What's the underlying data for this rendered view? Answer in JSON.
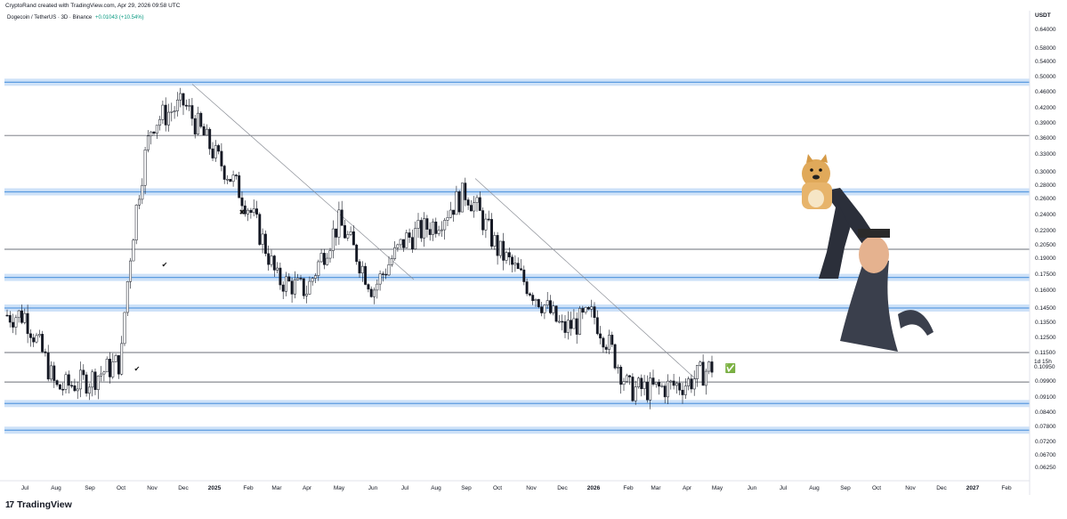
{
  "header": {
    "credit": "CryptoRand created with TradingView.com, Apr 29, 2026 09:58 UTC",
    "symbol": "Dogecoin / TetherUS · 3D · Binance",
    "change": "+0.01043 (+10.54%)"
  },
  "footer": {
    "brand": "TradingView"
  },
  "colors": {
    "up": "#ffffff",
    "down": "#131722",
    "zone": "#bcd7f5",
    "zoneLine": "#5b9be0",
    "check": "#5cb85c"
  },
  "chart_data": {
    "type": "candlestick",
    "currency": "USDT",
    "price_label": "0.10950",
    "countdown": "1d 15h",
    "y_ticks": [
      "0.64000",
      "0.58000",
      "0.54000",
      "0.50000",
      "0.46000",
      "0.42000",
      "0.39000",
      "0.36000",
      "0.33000",
      "0.30000",
      "0.28000",
      "0.26000",
      "0.24000",
      "0.22000",
      "0.20500",
      "0.19000",
      "0.17500",
      "0.16000",
      "0.14500",
      "0.13500",
      "0.12500",
      "0.11500",
      "0.09900",
      "0.09100",
      "0.08400",
      "0.07800",
      "0.07200",
      "0.06700",
      "0.06250"
    ],
    "x_ticks": [
      "Jul",
      "Aug",
      "Sep",
      "Oct",
      "Nov",
      "Dec",
      "2025",
      "Feb",
      "Mar",
      "Apr",
      "May",
      "Jun",
      "Jul",
      "Aug",
      "Sep",
      "Oct",
      "Nov",
      "Dec",
      "2026",
      "Feb",
      "Mar",
      "Apr",
      "May",
      "Jun",
      "Jul",
      "Aug",
      "Sep",
      "Oct",
      "Nov",
      "Dec",
      "2027",
      "Feb"
    ],
    "support_resistance_zones": [
      0.485,
      0.27,
      0.172,
      0.145,
      0.088,
      0.0765
    ],
    "horizontal_levels": [
      0.365,
      0.2,
      0.115,
      0.0985
    ],
    "trendlines": [
      {
        "from": [
          "Dec 2024",
          0.48
        ],
        "to": [
          "Jul 2025",
          0.17
        ]
      },
      {
        "from": [
          "Sep 2025",
          0.29
        ],
        "to": [
          "Apr 2026",
          0.1
        ]
      }
    ],
    "markers": [
      {
        "label": "✔",
        "date": "Nov 2024"
      },
      {
        "label": "✔",
        "date": "Oct 2024"
      },
      {
        "label": "✖",
        "date": "Jan 2025"
      },
      {
        "label": "✅",
        "date": "May 2026"
      }
    ],
    "price_path": [
      [
        "Jul 2024",
        0.14
      ],
      [
        "Aug 2024",
        0.095
      ],
      [
        "Sep 2024",
        0.1
      ],
      [
        "Oct 2024",
        0.11
      ],
      [
        "Nov 2024",
        0.39
      ],
      [
        "Dec 2024",
        0.43
      ],
      [
        "Jan 2025",
        0.33
      ],
      [
        "Feb 2025",
        0.25
      ],
      [
        "Mar 2025",
        0.17
      ],
      [
        "Apr 2025",
        0.16
      ],
      [
        "May 2025",
        0.23
      ],
      [
        "Jun 2025",
        0.16
      ],
      [
        "Jul 2025",
        0.21
      ],
      [
        "Aug 2025",
        0.23
      ],
      [
        "Sep 2025",
        0.27
      ],
      [
        "Oct 2025",
        0.2
      ],
      [
        "Nov 2025",
        0.16
      ],
      [
        "Dec 2025",
        0.13
      ],
      [
        "Jan 2026",
        0.14
      ],
      [
        "Feb 2026",
        0.095
      ],
      [
        "Mar 2026",
        0.095
      ],
      [
        "Apr 2026",
        0.098
      ],
      [
        "May 2026",
        0.109
      ]
    ]
  }
}
